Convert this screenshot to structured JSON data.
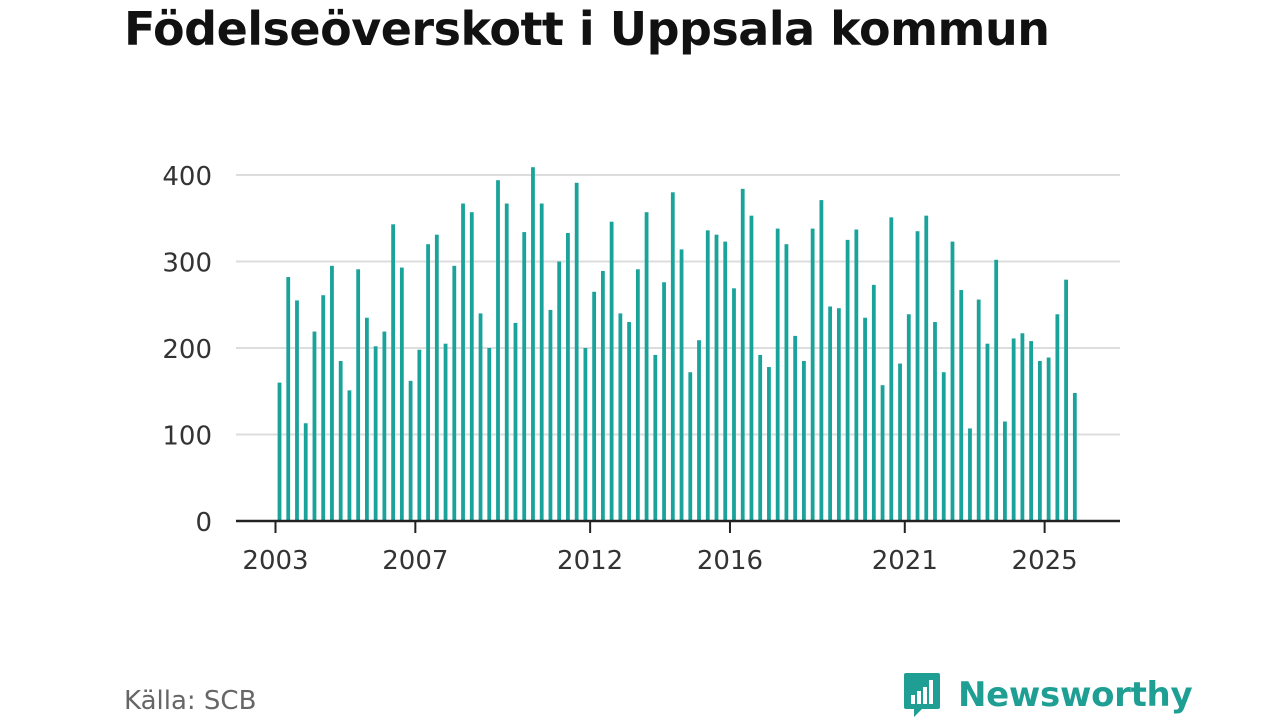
{
  "title": "Födelseöverskott i Uppsala kommun",
  "source": "Källa: SCB",
  "brand": {
    "name": "Newsworthy",
    "icon": "newsworthy-logo-icon"
  },
  "colors": {
    "bar": "#1aa39a",
    "grid": "#dddddd",
    "axis": "#222222",
    "text": "#333333",
    "brand": "#1f9f93"
  },
  "chart_data": {
    "type": "bar",
    "title": "Födelseöverskott i Uppsala kommun",
    "xlabel": "",
    "ylabel": "",
    "ylim": [
      0,
      400
    ],
    "yticks": [
      0,
      100,
      200,
      300,
      400
    ],
    "xticks": [
      "2003",
      "2007",
      "2012",
      "2016",
      "2021",
      "2025"
    ],
    "grid": true,
    "frequency": "quarterly",
    "first_period": "2003 Q1",
    "values": [
      160,
      282,
      255,
      113,
      219,
      261,
      295,
      185,
      151,
      291,
      235,
      202,
      219,
      343,
      293,
      162,
      198,
      320,
      331,
      205,
      295,
      367,
      357,
      240,
      200,
      394,
      367,
      229,
      334,
      409,
      367,
      244,
      300,
      333,
      391,
      200,
      265,
      289,
      346,
      240,
      230,
      291,
      357,
      192,
      276,
      380,
      314,
      172,
      209,
      336,
      331,
      323,
      269,
      384,
      353,
      192,
      178,
      338,
      320,
      214,
      185,
      338,
      371,
      248,
      246,
      325,
      337,
      235,
      273,
      157,
      351,
      182,
      239,
      335,
      353,
      230,
      172,
      323,
      267,
      107,
      256,
      205,
      302,
      115,
      211,
      217,
      208,
      185,
      189,
      239,
      279,
      148
    ]
  }
}
